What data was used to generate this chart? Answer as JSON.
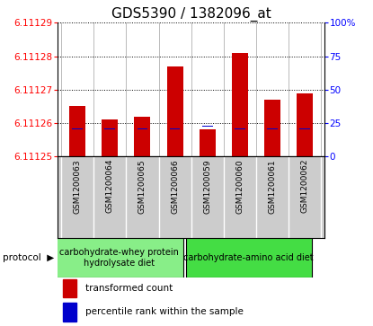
{
  "title": "GDS5390 / 1382096_at",
  "samples": [
    "GSM1200063",
    "GSM1200064",
    "GSM1200065",
    "GSM1200066",
    "GSM1200059",
    "GSM1200060",
    "GSM1200061",
    "GSM1200062"
  ],
  "transformed_counts": [
    6.111265,
    6.111261,
    6.111262,
    6.111277,
    6.111258,
    6.111281,
    6.111267,
    6.111269
  ],
  "percentile_ranks": [
    20,
    20,
    20,
    20,
    22,
    20,
    20,
    20
  ],
  "ylim_left": [
    6.11125,
    6.11129
  ],
  "ylim_right": [
    0,
    100
  ],
  "yticks_left": [
    6.11125,
    6.11126,
    6.11127,
    6.11128,
    6.11129
  ],
  "yticks_right": [
    0,
    25,
    50,
    75,
    100
  ],
  "ytick_labels_right": [
    "0",
    "25",
    "50",
    "75",
    "100%"
  ],
  "bar_color_red": "#cc0000",
  "bar_color_blue": "#0000cc",
  "protocol_groups": [
    {
      "label": "carbohydrate-whey protein\nhydrolysate diet",
      "color": "#88ee88"
    },
    {
      "label": "carbohydrate-amino acid diet",
      "color": "#44dd44"
    }
  ],
  "legend_items": [
    {
      "label": "transformed count",
      "color": "#cc0000"
    },
    {
      "label": "percentile rank within the sample",
      "color": "#0000cc"
    }
  ],
  "protocol_label": "protocol",
  "xtick_bg_color": "#cccccc",
  "title_fontsize": 11,
  "tick_fontsize": 7.5,
  "bar_width": 0.5
}
